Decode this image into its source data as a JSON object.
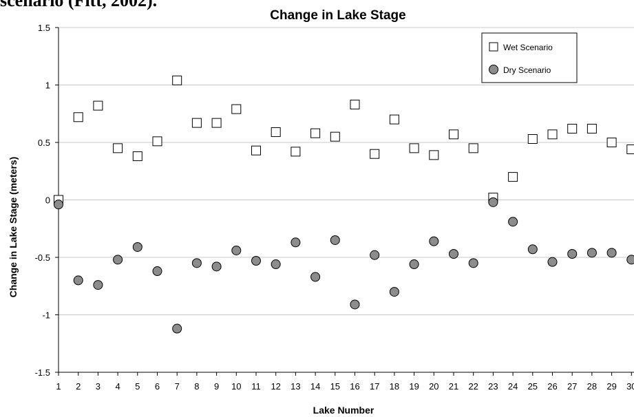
{
  "page": {
    "clipped_text": "scenario (Fitt, 2002)."
  },
  "chart_data": {
    "type": "scatter",
    "title": "Change in Lake Stage",
    "xlabel": "Lake Number",
    "ylabel": "Change in Lake Stage (meters)",
    "x": [
      1,
      2,
      3,
      4,
      5,
      6,
      7,
      8,
      9,
      10,
      11,
      12,
      13,
      14,
      15,
      16,
      17,
      18,
      19,
      20,
      21,
      22,
      23,
      24,
      25,
      26,
      27,
      28,
      29,
      30
    ],
    "ylim": [
      -1.5,
      1.5
    ],
    "yticks": [
      "1.5",
      "1",
      "0.5",
      "0",
      "-0.5",
      "-1",
      "-1.5"
    ],
    "ytick_values": [
      1.5,
      1,
      0.5,
      0,
      -0.5,
      -1,
      -1.5
    ],
    "grid": true,
    "legend_position": "top-right",
    "series": [
      {
        "name": "Wet Scenario",
        "marker": "square",
        "color": "#ffffff",
        "values": [
          0.0,
          0.72,
          0.82,
          0.45,
          0.38,
          0.51,
          1.04,
          0.67,
          0.67,
          0.79,
          0.43,
          0.59,
          0.42,
          0.58,
          0.55,
          0.83,
          0.4,
          0.7,
          0.45,
          0.39,
          0.57,
          0.45,
          0.02,
          0.2,
          0.53,
          0.57,
          0.62,
          0.62,
          0.5,
          0.44
        ]
      },
      {
        "name": "Dry Scenario",
        "marker": "circle",
        "color": "#8c8c8c",
        "values": [
          -0.04,
          -0.7,
          -0.74,
          -0.52,
          -0.41,
          -0.62,
          -1.12,
          -0.55,
          -0.58,
          -0.44,
          -0.53,
          -0.56,
          -0.37,
          -0.67,
          -0.35,
          -0.91,
          -0.48,
          -0.8,
          -0.56,
          -0.36,
          -0.47,
          -0.55,
          -0.02,
          -0.19,
          -0.43,
          -0.54,
          -0.47,
          -0.46,
          -0.46,
          -0.52
        ]
      }
    ]
  }
}
